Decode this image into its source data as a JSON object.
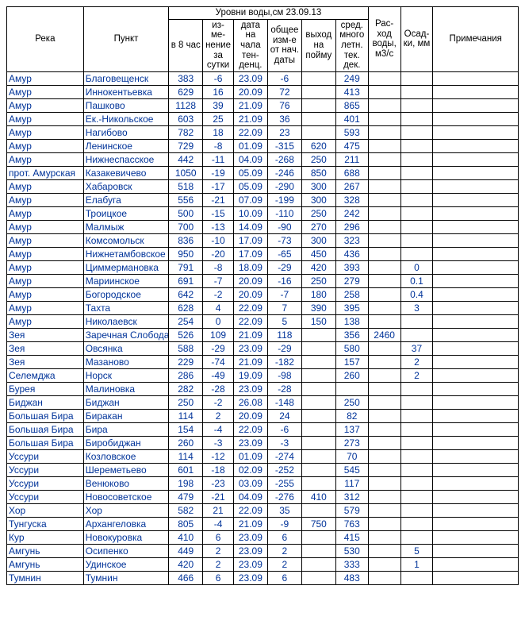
{
  "header": {
    "group_title": "Уровни воды,см  23.09.13",
    "river": "Река",
    "point": "Пункт",
    "h8": "в 8 час",
    "chg": "из-\nме-\nнение\nза\nсутки",
    "date": "дата на\nчала\nтен-\nденц.",
    "tot": "общее\nизм-е\nот нач.\nдаты",
    "flood": "выход\nна\nпойму",
    "avg": "сред.\nмного\nлетн.\nтек.\nдек.",
    "flow": "Рас-\nход\nводы,\nм3/с",
    "prec": "Осад-\nки, мм",
    "note": "Примечания"
  },
  "rows": [
    {
      "r": "Амур",
      "p": "Благовещенск",
      "h8": "383",
      "chg": "-6",
      "dt": "23.09",
      "tot": "-6",
      "fl": "",
      "avg": "249",
      "fw": "",
      "pr": "",
      "nt": ""
    },
    {
      "r": "Амур",
      "p": "Иннокентьевка",
      "h8": "629",
      "chg": "16",
      "dt": "20.09",
      "tot": "72",
      "fl": "",
      "avg": "413",
      "fw": "",
      "pr": "",
      "nt": ""
    },
    {
      "r": "Амур",
      "p": "Пашково",
      "h8": "1128",
      "chg": "39",
      "dt": "21.09",
      "tot": "76",
      "fl": "",
      "avg": "865",
      "fw": "",
      "pr": "",
      "nt": ""
    },
    {
      "r": "Амур",
      "p": "Ек.-Никольское",
      "h8": "603",
      "chg": "25",
      "dt": "21.09",
      "tot": "36",
      "fl": "",
      "avg": "401",
      "fw": "",
      "pr": "",
      "nt": ""
    },
    {
      "r": "Амур",
      "p": "Нагибово",
      "h8": "782",
      "chg": "18",
      "dt": "22.09",
      "tot": "23",
      "fl": "",
      "avg": "593",
      "fw": "",
      "pr": "",
      "nt": ""
    },
    {
      "r": "Амур",
      "p": "Ленинское",
      "h8": "729",
      "chg": "-8",
      "dt": "01.09",
      "tot": "-315",
      "fl": "620",
      "avg": "475",
      "fw": "",
      "pr": "",
      "nt": ""
    },
    {
      "r": "Амур",
      "p": "Нижнеспасское",
      "h8": "442",
      "chg": "-11",
      "dt": "04.09",
      "tot": "-268",
      "fl": "250",
      "avg": "211",
      "fw": "",
      "pr": "",
      "nt": ""
    },
    {
      "r": "прот. Амурская",
      "p": "Казакевичево",
      "h8": "1050",
      "chg": "-19",
      "dt": "05.09",
      "tot": "-246",
      "fl": "850",
      "avg": "688",
      "fw": "",
      "pr": "",
      "nt": ""
    },
    {
      "r": "Амур",
      "p": "Хабаровск",
      "h8": "518",
      "chg": "-17",
      "dt": "05.09",
      "tot": "-290",
      "fl": "300",
      "avg": "267",
      "fw": "",
      "pr": "",
      "nt": ""
    },
    {
      "r": "Амур",
      "p": "Елабуга",
      "h8": "556",
      "chg": "-21",
      "dt": "07.09",
      "tot": "-199",
      "fl": "300",
      "avg": "328",
      "fw": "",
      "pr": "",
      "nt": ""
    },
    {
      "r": "Амур",
      "p": "Троицкое",
      "h8": "500",
      "chg": "-15",
      "dt": "10.09",
      "tot": "-110",
      "fl": "250",
      "avg": "242",
      "fw": "",
      "pr": "",
      "nt": ""
    },
    {
      "r": "Амур",
      "p": "Малмыж",
      "h8": "700",
      "chg": "-13",
      "dt": "14.09",
      "tot": "-90",
      "fl": "270",
      "avg": "296",
      "fw": "",
      "pr": "",
      "nt": ""
    },
    {
      "r": "Амур",
      "p": "Комсомольск",
      "h8": "836",
      "chg": "-10",
      "dt": "17.09",
      "tot": "-73",
      "fl": "300",
      "avg": "323",
      "fw": "",
      "pr": "",
      "nt": ""
    },
    {
      "r": "Амур",
      "p": "Нижнетамбовское",
      "h8": "950",
      "chg": "-20",
      "dt": "17.09",
      "tot": "-65",
      "fl": "450",
      "avg": "436",
      "fw": "",
      "pr": "",
      "nt": ""
    },
    {
      "r": "Амур",
      "p": "Циммермановка",
      "h8": "791",
      "chg": "-8",
      "dt": "18.09",
      "tot": "-29",
      "fl": "420",
      "avg": "393",
      "fw": "",
      "pr": "0",
      "nt": ""
    },
    {
      "r": "Амур",
      "p": "Мариинское",
      "h8": "691",
      "chg": "-7",
      "dt": "20.09",
      "tot": "-16",
      "fl": "250",
      "avg": "279",
      "fw": "",
      "pr": "0.1",
      "nt": ""
    },
    {
      "r": "Амур",
      "p": "Богородское",
      "h8": "642",
      "chg": "-2",
      "dt": "20.09",
      "tot": "-7",
      "fl": "180",
      "avg": "258",
      "fw": "",
      "pr": "0.4",
      "nt": ""
    },
    {
      "r": "Амур",
      "p": "Тахта",
      "h8": "628",
      "chg": "4",
      "dt": "22.09",
      "tot": "7",
      "fl": "390",
      "avg": "395",
      "fw": "",
      "pr": "3",
      "nt": ""
    },
    {
      "r": "Амур",
      "p": "Николаевск",
      "h8": "254",
      "chg": "0",
      "dt": "22.09",
      "tot": "5",
      "fl": "150",
      "avg": "138",
      "fw": "",
      "pr": "",
      "nt": ""
    },
    {
      "r": "Зея",
      "p": "Заречная Слобода",
      "h8": "526",
      "chg": "109",
      "dt": "21.09",
      "tot": "118",
      "fl": "",
      "avg": "356",
      "fw": "2460",
      "pr": "",
      "nt": ""
    },
    {
      "r": "Зея",
      "p": "Овсянка",
      "h8": "588",
      "chg": "-29",
      "dt": "23.09",
      "tot": "-29",
      "fl": "",
      "avg": "580",
      "fw": "",
      "pr": "37",
      "nt": ""
    },
    {
      "r": "Зея",
      "p": "Мазаново",
      "h8": "229",
      "chg": "-74",
      "dt": "21.09",
      "tot": "-182",
      "fl": "",
      "avg": "157",
      "fw": "",
      "pr": "2",
      "nt": ""
    },
    {
      "r": "Селемджа",
      "p": "Норск",
      "h8": "286",
      "chg": "-49",
      "dt": "19.09",
      "tot": "-98",
      "fl": "",
      "avg": "260",
      "fw": "",
      "pr": "2",
      "nt": ""
    },
    {
      "r": "Бурея",
      "p": "Малиновка",
      "h8": "282",
      "chg": "-28",
      "dt": "23.09",
      "tot": "-28",
      "fl": "",
      "avg": "",
      "fw": "",
      "pr": "",
      "nt": ""
    },
    {
      "r": "Биджан",
      "p": "Биджан",
      "h8": "250",
      "chg": "-2",
      "dt": "26.08",
      "tot": "-148",
      "fl": "",
      "avg": "250",
      "fw": "",
      "pr": "",
      "nt": ""
    },
    {
      "r": "Большая Бира",
      "p": "Биракан",
      "h8": "114",
      "chg": "2",
      "dt": "20.09",
      "tot": "24",
      "fl": "",
      "avg": "82",
      "fw": "",
      "pr": "",
      "nt": ""
    },
    {
      "r": "Большая Бира",
      "p": "Бира",
      "h8": "154",
      "chg": "-4",
      "dt": "22.09",
      "tot": "-6",
      "fl": "",
      "avg": "137",
      "fw": "",
      "pr": "",
      "nt": ""
    },
    {
      "r": "Большая Бира",
      "p": "Биробиджан",
      "h8": "260",
      "chg": "-3",
      "dt": "23.09",
      "tot": "-3",
      "fl": "",
      "avg": "273",
      "fw": "",
      "pr": "",
      "nt": ""
    },
    {
      "r": "Уссури",
      "p": "Козловское",
      "h8": "114",
      "chg": "-12",
      "dt": "01.09",
      "tot": "-274",
      "fl": "",
      "avg": "70",
      "fw": "",
      "pr": "",
      "nt": ""
    },
    {
      "r": "Уссури",
      "p": "Шереметьево",
      "h8": "601",
      "chg": "-18",
      "dt": "02.09",
      "tot": "-252",
      "fl": "",
      "avg": "545",
      "fw": "",
      "pr": "",
      "nt": ""
    },
    {
      "r": "Уссури",
      "p": "Венюково",
      "h8": "198",
      "chg": "-23",
      "dt": "03.09",
      "tot": "-255",
      "fl": "",
      "avg": "117",
      "fw": "",
      "pr": "",
      "nt": ""
    },
    {
      "r": "Уссури",
      "p": "Новосоветское",
      "h8": "479",
      "chg": "-21",
      "dt": "04.09",
      "tot": "-276",
      "fl": "410",
      "avg": "312",
      "fw": "",
      "pr": "",
      "nt": ""
    },
    {
      "r": "Хор",
      "p": "Хор",
      "h8": "582",
      "chg": "21",
      "dt": "22.09",
      "tot": "35",
      "fl": "",
      "avg": "579",
      "fw": "",
      "pr": "",
      "nt": ""
    },
    {
      "r": "Тунгуска",
      "p": "Архангеловка",
      "h8": "805",
      "chg": "-4",
      "dt": "21.09",
      "tot": "-9",
      "fl": "750",
      "avg": "763",
      "fw": "",
      "pr": "",
      "nt": ""
    },
    {
      "r": "Кур",
      "p": "Новокуровка",
      "h8": "410",
      "chg": "6",
      "dt": "23.09",
      "tot": "6",
      "fl": "",
      "avg": "415",
      "fw": "",
      "pr": "",
      "nt": ""
    },
    {
      "r": "Амгунь",
      "p": "Осипенко",
      "h8": "449",
      "chg": "2",
      "dt": "23.09",
      "tot": "2",
      "fl": "",
      "avg": "530",
      "fw": "",
      "pr": "5",
      "nt": ""
    },
    {
      "r": "Амгунь",
      "p": "Удинское",
      "h8": "420",
      "chg": "2",
      "dt": "23.09",
      "tot": "2",
      "fl": "",
      "avg": "333",
      "fw": "",
      "pr": "1",
      "nt": ""
    },
    {
      "r": "Тумнин",
      "p": "Тумнин",
      "h8": "466",
      "chg": "6",
      "dt": "23.09",
      "tot": "6",
      "fl": "",
      "avg": "483",
      "fw": "",
      "pr": "",
      "nt": ""
    }
  ]
}
